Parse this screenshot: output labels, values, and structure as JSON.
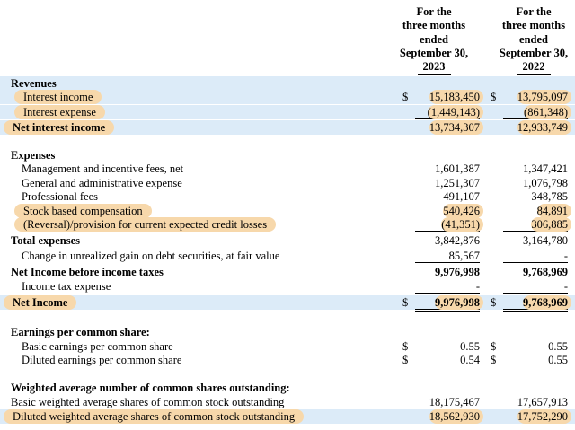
{
  "header": {
    "columns": [
      {
        "lines": [
          "For the",
          "three months",
          "ended",
          "September 30,",
          "2023"
        ]
      },
      {
        "lines": [
          "For the",
          "three months",
          "ended",
          "September 30,",
          "2022"
        ]
      }
    ]
  },
  "rows": [
    {
      "label": "Revenues"
    },
    {
      "label": "Interest income",
      "currency": [
        "$",
        "$"
      ],
      "amounts": [
        "15,183,450",
        "13,795,097"
      ]
    },
    {
      "label": "Interest expense",
      "amounts": [
        "(1,449,143)",
        "(861,348)"
      ]
    },
    {
      "label": "Net interest income",
      "amounts": [
        "13,734,307",
        "12,933,749"
      ]
    },
    {
      "label": "Expenses"
    },
    {
      "label": "Management and incentive fees, net",
      "amounts": [
        "1,601,387",
        "1,347,421"
      ]
    },
    {
      "label": "General and administrative expense",
      "amounts": [
        "1,251,307",
        "1,076,798"
      ]
    },
    {
      "label": "Professional fees",
      "amounts": [
        "491,107",
        "348,785"
      ]
    },
    {
      "label": "Stock based compensation",
      "amounts": [
        "540,426",
        "84,891"
      ]
    },
    {
      "label": "(Reversal)/provision for current expected credit losses",
      "amounts": [
        "(41,351)",
        "306,885"
      ]
    },
    {
      "label": "Total expenses",
      "amounts": [
        "3,842,876",
        "3,164,780"
      ]
    },
    {
      "label": "Change in unrealized gain on debt securities, at fair value",
      "amounts": [
        "85,567",
        "-"
      ]
    },
    {
      "label": "Net Income before income taxes",
      "amounts": [
        "9,976,998",
        "9,768,969"
      ]
    },
    {
      "label": "Income tax expense",
      "amounts": [
        "-",
        "-"
      ]
    },
    {
      "label": "Net Income",
      "currency": [
        "$",
        "$"
      ],
      "amounts": [
        "9,976,998",
        "9,768,969"
      ]
    },
    {
      "label": "Earnings per common share:"
    },
    {
      "label": "Basic earnings per common share",
      "currency": [
        "$",
        "$"
      ],
      "amounts": [
        "0.55",
        "0.55"
      ]
    },
    {
      "label": "Diluted earnings per common share",
      "currency": [
        "$",
        "$"
      ],
      "amounts": [
        "0.54",
        "0.55"
      ]
    },
    {
      "label": "Weighted average number of common shares outstanding:"
    },
    {
      "label": "Basic weighted average shares of common stock outstanding",
      "amounts": [
        "18,175,467",
        "17,657,913"
      ]
    },
    {
      "label": "Diluted weighted average shares of common stock outstanding",
      "amounts": [
        "18,562,930",
        "17,752,290"
      ]
    }
  ]
}
